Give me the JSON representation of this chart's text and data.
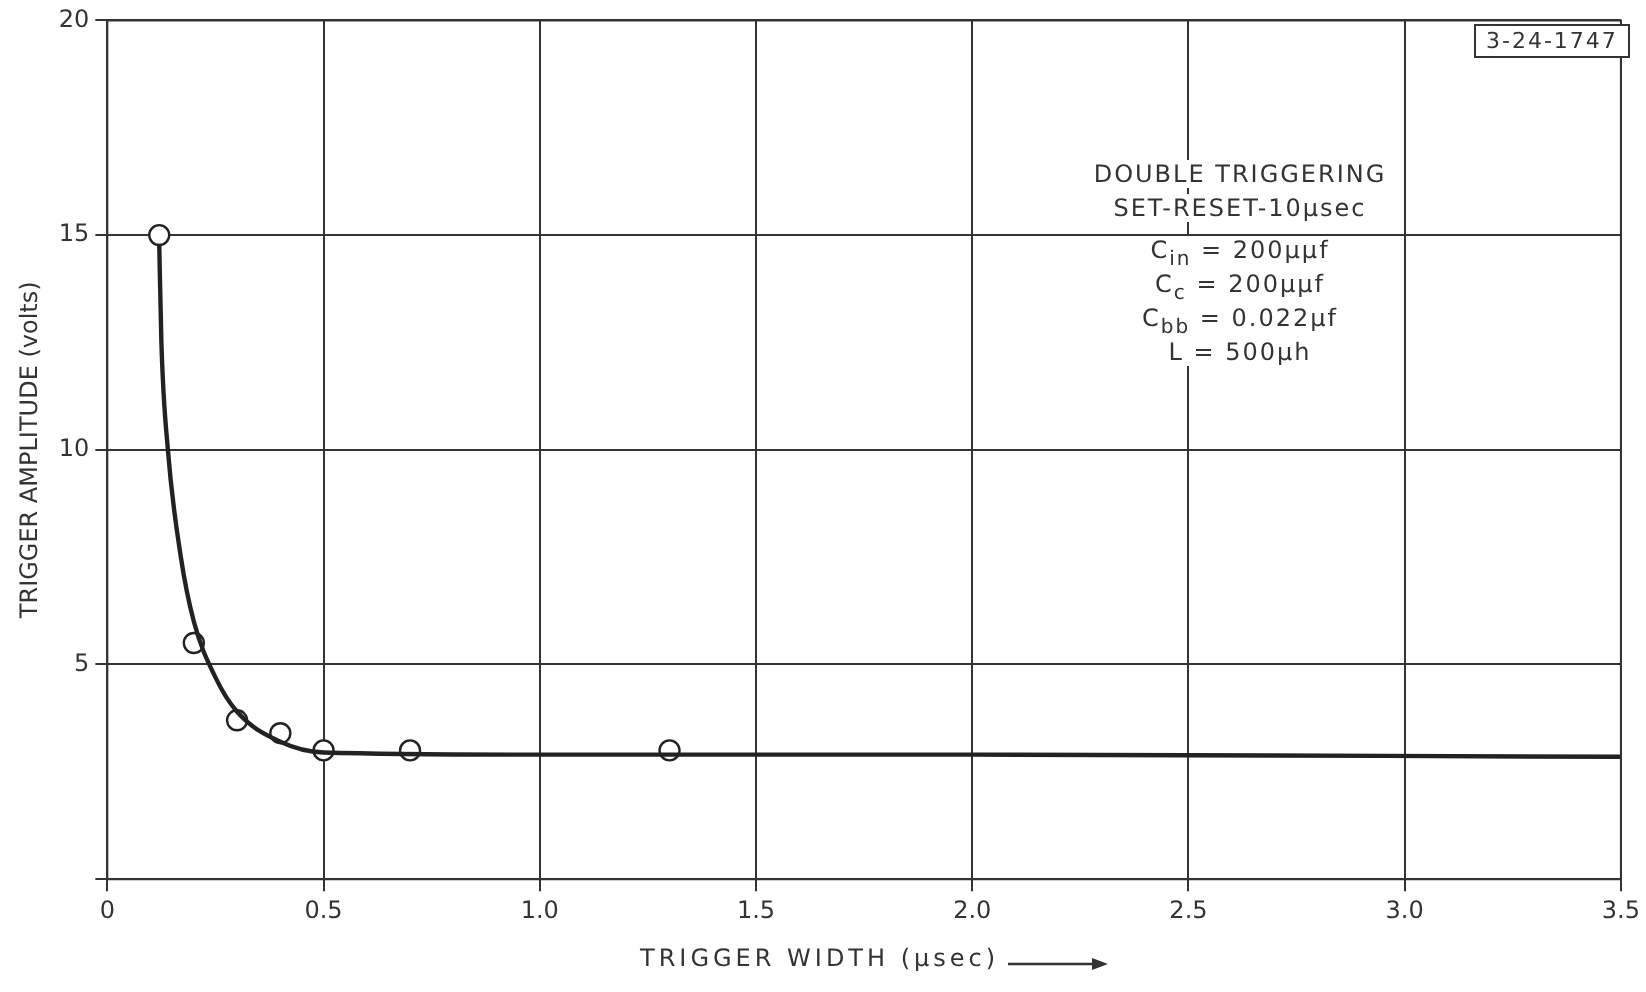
{
  "chart_data": {
    "type": "scatter",
    "xlabel": "TRIGGER WIDTH (µsec)",
    "ylabel": "TRIGGER AMPLITUDE (volts)",
    "xlim": [
      0,
      3.5
    ],
    "xticks": [
      {
        "value": 0,
        "label": "0"
      },
      0.5,
      {
        "value": 1,
        "label": "1.0"
      },
      1.5,
      {
        "value": 2,
        "label": "2.0"
      },
      2.5,
      {
        "value": 3,
        "label": "3.0"
      },
      3.5
    ],
    "ylim": [
      0,
      20
    ],
    "yticks": [
      {
        "value": 0,
        "label": null
      },
      5,
      10,
      15,
      20
    ],
    "grid": true,
    "legend": false,
    "annotations": [
      "3-24-1747",
      "DOUBLE TRIGGERING",
      "SET-RESET-10µsec",
      "C$_{in}$ = 200µµf",
      "C$_{c}$ = 200µµf",
      "C$_{bb}$ = 0.022µf",
      "L = 500µh"
    ],
    "series": [
      {
        "type": "line",
        "color": "#222222",
        "marker": "none",
        "line_style": "solid",
        "x": [
          0.12,
          0.125,
          0.14,
          0.17,
          0.2,
          0.25,
          0.3,
          0.4,
          0.5,
          1.0,
          2.0,
          3.5
        ],
        "values": [
          14.8,
          12.5,
          10,
          7.5,
          6,
          4.7,
          3.9,
          3.2,
          2.95,
          2.9,
          2.9,
          2.85
        ]
      },
      {
        "type": "scatter",
        "color": "#222222",
        "marker": "circle",
        "x": [
          0.12,
          0.2,
          0.3,
          0.4,
          0.5,
          0.7,
          1.3
        ],
        "values": [
          15,
          5.5,
          3.7,
          3.4,
          3,
          3,
          3
        ]
      }
    ]
  }
}
